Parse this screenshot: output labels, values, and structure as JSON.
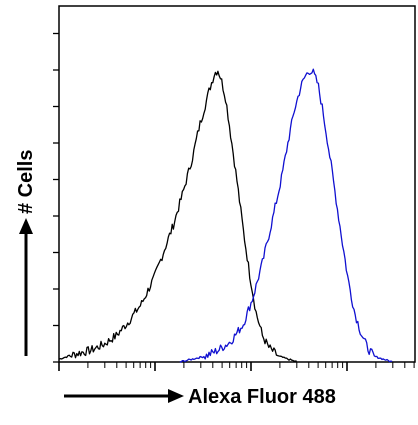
{
  "chart_data": {
    "type": "line",
    "title": "",
    "xlabel": "Alexa Fluor 488",
    "ylabel": "# Cells",
    "xscale": "log",
    "grid": false,
    "legend": "none",
    "series": [
      {
        "color": "#000000",
        "points": [
          [
            0.0,
            0.01
          ],
          [
            0.03,
            0.02
          ],
          [
            0.06,
            0.03
          ],
          [
            0.1,
            0.04
          ],
          [
            0.14,
            0.06
          ],
          [
            0.18,
            0.09
          ],
          [
            0.22,
            0.14
          ],
          [
            0.26,
            0.2
          ],
          [
            0.3,
            0.29
          ],
          [
            0.33,
            0.38
          ],
          [
            0.36,
            0.47
          ],
          [
            0.39,
            0.58
          ],
          [
            0.42,
            0.7
          ],
          [
            0.44,
            0.8
          ],
          [
            0.46,
            0.88
          ],
          [
            0.475,
            0.94
          ],
          [
            0.49,
            0.99
          ],
          [
            0.5,
            1.0
          ],
          [
            0.51,
            0.97
          ],
          [
            0.525,
            0.9
          ],
          [
            0.54,
            0.78
          ],
          [
            0.56,
            0.62
          ],
          [
            0.58,
            0.45
          ],
          [
            0.6,
            0.3
          ],
          [
            0.62,
            0.17
          ],
          [
            0.64,
            0.09
          ],
          [
            0.66,
            0.05
          ],
          [
            0.69,
            0.02
          ],
          [
            0.72,
            0.01
          ],
          [
            0.75,
            0.0
          ]
        ]
      },
      {
        "color": "#1010d0",
        "points": [
          [
            0.38,
            0.0
          ],
          [
            0.42,
            0.01
          ],
          [
            0.46,
            0.02
          ],
          [
            0.5,
            0.04
          ],
          [
            0.54,
            0.07
          ],
          [
            0.58,
            0.13
          ],
          [
            0.61,
            0.22
          ],
          [
            0.64,
            0.34
          ],
          [
            0.67,
            0.48
          ],
          [
            0.7,
            0.63
          ],
          [
            0.72,
            0.75
          ],
          [
            0.74,
            0.86
          ],
          [
            0.76,
            0.94
          ],
          [
            0.775,
            0.98
          ],
          [
            0.79,
            1.0
          ],
          [
            0.8,
            0.99
          ],
          [
            0.815,
            0.95
          ],
          [
            0.83,
            0.86
          ],
          [
            0.85,
            0.72
          ],
          [
            0.87,
            0.57
          ],
          [
            0.89,
            0.42
          ],
          [
            0.91,
            0.28
          ],
          [
            0.93,
            0.17
          ],
          [
            0.95,
            0.1
          ],
          [
            0.97,
            0.05
          ],
          [
            0.99,
            0.02
          ],
          [
            1.02,
            0.01
          ],
          [
            1.05,
            0.0
          ]
        ]
      }
    ]
  }
}
